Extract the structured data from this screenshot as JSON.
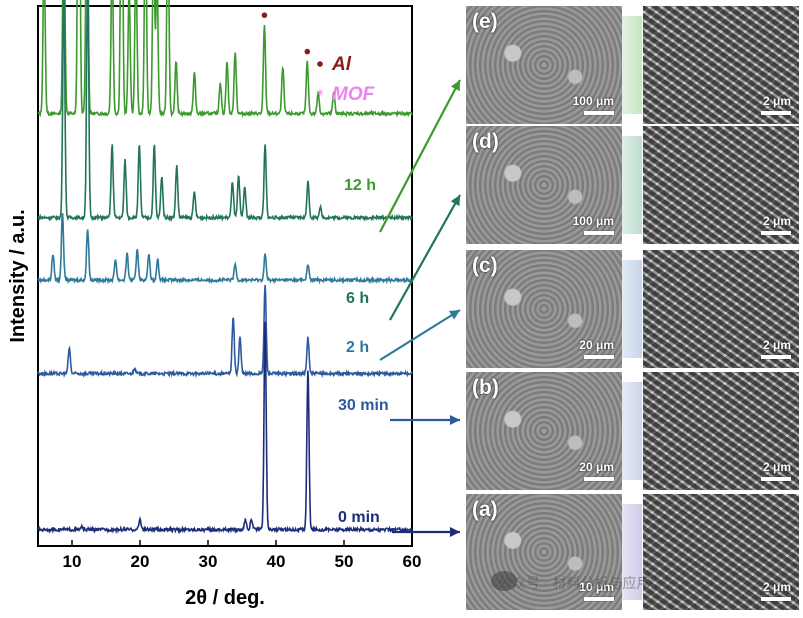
{
  "chart_data": {
    "type": "line",
    "xlabel": "2θ  / deg.",
    "ylabel": "Intensity / a.u.",
    "xlim": [
      5,
      60
    ],
    "xticks": [
      10,
      20,
      30,
      40,
      50,
      60
    ],
    "yticks": false,
    "legend": [
      {
        "symbol": "•",
        "label": "Al",
        "color": "#8b1a1a"
      },
      {
        "symbol": "*",
        "label": "MOF",
        "color": "#ee82ee"
      }
    ],
    "series": [
      {
        "name": "12 h",
        "color": "#3c9a2e",
        "baseline": 0.82,
        "peaks": [
          [
            5.9,
            0.3
          ],
          [
            8.8,
            0.42
          ],
          [
            11.0,
            0.85
          ],
          [
            12.2,
            0.55
          ],
          [
            15.9,
            0.3
          ],
          [
            17.3,
            0.58
          ],
          [
            18.4,
            0.24
          ],
          [
            19.4,
            0.3
          ],
          [
            20.8,
            0.38
          ],
          [
            22.0,
            0.34
          ],
          [
            22.5,
            0.26
          ],
          [
            24.1,
            0.39
          ],
          [
            25.3,
            0.1
          ],
          [
            28.0,
            0.08
          ],
          [
            31.8,
            0.06
          ],
          [
            32.8,
            0.1
          ],
          [
            34.0,
            0.12
          ],
          [
            38.3,
            0.17
          ],
          [
            41.0,
            0.09
          ],
          [
            44.6,
            0.1
          ],
          [
            46.2,
            0.04
          ],
          [
            48.5,
            0.04
          ]
        ]
      },
      {
        "name": "6 h",
        "color": "#23745a",
        "baseline": 0.62,
        "peaks": [
          [
            8.8,
            0.45
          ],
          [
            12.3,
            0.47
          ],
          [
            15.9,
            0.14
          ],
          [
            17.8,
            0.11
          ],
          [
            19.9,
            0.14
          ],
          [
            22.1,
            0.14
          ],
          [
            23.2,
            0.08
          ],
          [
            25.4,
            0.1
          ],
          [
            28.0,
            0.05
          ],
          [
            33.6,
            0.07
          ],
          [
            34.5,
            0.08
          ],
          [
            35.4,
            0.06
          ],
          [
            38.4,
            0.14
          ],
          [
            44.7,
            0.07
          ],
          [
            46.5,
            0.02
          ]
        ]
      },
      {
        "name": "2 h",
        "color": "#2f7a9c",
        "baseline": 0.5,
        "peaks": [
          [
            7.2,
            0.05
          ],
          [
            8.6,
            0.13
          ],
          [
            12.3,
            0.1
          ],
          [
            16.4,
            0.04
          ],
          [
            18.1,
            0.05
          ],
          [
            19.6,
            0.06
          ],
          [
            21.3,
            0.05
          ],
          [
            22.6,
            0.04
          ],
          [
            34.0,
            0.03
          ],
          [
            38.4,
            0.05
          ],
          [
            44.7,
            0.03
          ]
        ]
      },
      {
        "name": "30 min",
        "color": "#2d5a9e",
        "baseline": 0.32,
        "peaks": [
          [
            9.6,
            0.05
          ],
          [
            19.2,
            0.01
          ],
          [
            33.7,
            0.11
          ],
          [
            34.7,
            0.07
          ],
          [
            38.4,
            0.17
          ],
          [
            44.7,
            0.07
          ]
        ]
      },
      {
        "name": "0 min",
        "color": "#1e2d7a",
        "baseline": 0.02,
        "peaks": [
          [
            11.5,
            0.005
          ],
          [
            20.0,
            0.02
          ],
          [
            35.5,
            0.02
          ],
          [
            36.4,
            0.02
          ],
          [
            38.4,
            0.4
          ],
          [
            44.7,
            0.31
          ]
        ]
      }
    ],
    "mof_markers": [
      [
        5.9,
        12.2
      ],
      [
        11.0,
        12.2
      ],
      [
        15.9,
        12.2
      ],
      [
        17.3,
        12.2
      ],
      [
        18.4,
        12.2
      ],
      [
        19.4,
        12.2
      ],
      [
        20.8,
        12.2
      ],
      [
        22.0,
        12.2
      ],
      [
        24.1,
        12.2
      ]
    ],
    "al_markers": [
      [
        38.3,
        12.2
      ],
      [
        44.6,
        12.2
      ]
    ],
    "sem_panels": [
      {
        "id": "e",
        "label": "(e)",
        "low_scale": "100 μm",
        "high_scale": "2 μm",
        "arrow_from": "12 h"
      },
      {
        "id": "d",
        "label": "(d)",
        "low_scale": "100 μm",
        "high_scale": "2 μm",
        "arrow_from": "6 h"
      },
      {
        "id": "c",
        "label": "(c)",
        "low_scale": "20 μm",
        "high_scale": "2 μm",
        "arrow_from": "2 h"
      },
      {
        "id": "b",
        "label": "(b)",
        "low_scale": "20 μm",
        "high_scale": "2 μm",
        "arrow_from": "30 min"
      },
      {
        "id": "a",
        "label": "(a)",
        "low_scale": "10 μm",
        "high_scale": "2 μm",
        "arrow_from": "0 min"
      }
    ]
  },
  "watermark": "公众号 · 材料分析与应用"
}
